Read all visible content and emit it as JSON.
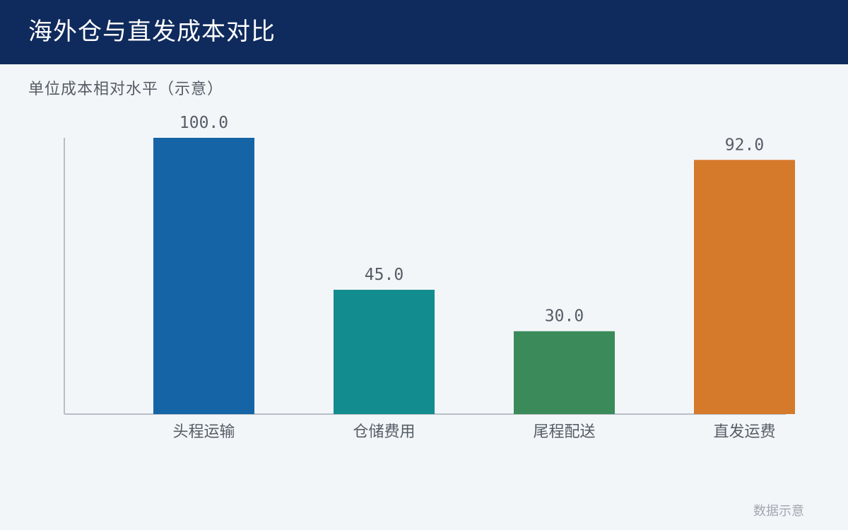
{
  "title": "海外仓与直发成本对比",
  "subtitle": "单位成本相对水平（示意）",
  "footer_note": "数据示意",
  "chart_data": {
    "type": "bar",
    "categories": [
      "头程运输",
      "仓储费用",
      "尾程配送",
      "直发运费"
    ],
    "values": [
      100.0,
      45.0,
      30.0,
      92.0
    ],
    "value_labels": [
      "100.0",
      "45.0",
      "30.0",
      "92.0"
    ],
    "ylim": [
      0,
      100
    ],
    "grid": false,
    "colors": [
      "#1565a6",
      "#128c8f",
      "#3b8a5a",
      "#d5792a"
    ],
    "axis_color": "#b8bec6",
    "label_color": "#555d66"
  }
}
